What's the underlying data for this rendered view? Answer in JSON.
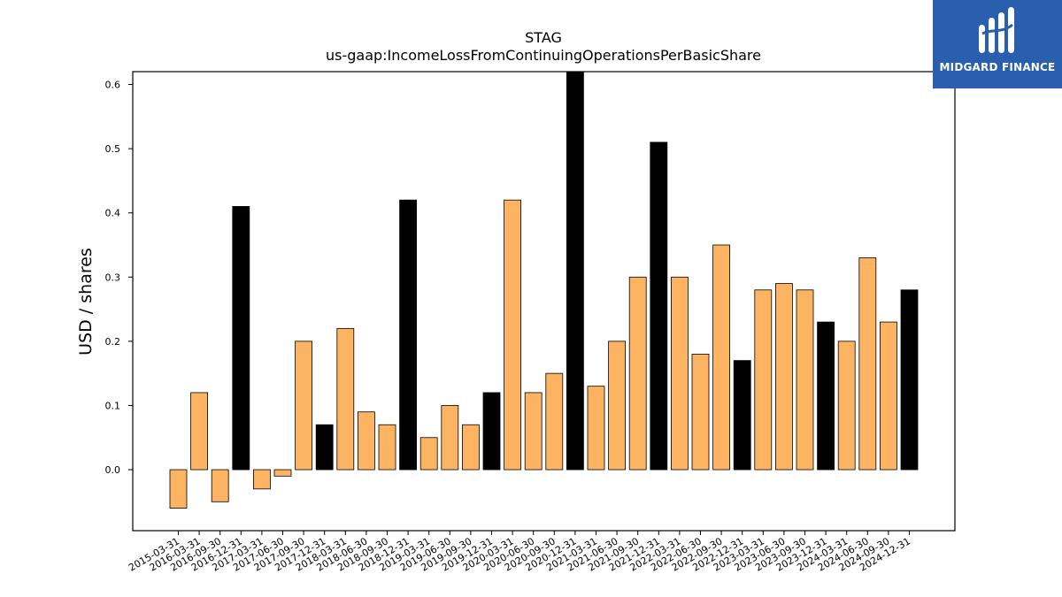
{
  "brand": {
    "name": "MIDGARD FINANCE",
    "bg_color": "#2a5fb0",
    "icon": "midgard-logo-icon"
  },
  "chart_data": {
    "type": "bar",
    "title": "STAG",
    "subtitle": "us-gaap:IncomeLossFromContinuingOperationsPerBasicShare",
    "xlabel": "",
    "ylabel": "USD / shares",
    "ylim": [
      -0.095,
      0.62
    ],
    "yticks": [
      0.0,
      0.1,
      0.2,
      0.3,
      0.4,
      0.5,
      0.6
    ],
    "grid": false,
    "colors": {
      "quarter": "#fdb462",
      "annual": "#000000",
      "edge": "#000000"
    },
    "categories": [
      "2015-03-31",
      "2016-03-31",
      "2016-09-30",
      "2016-12-31",
      "2017-03-31",
      "2017-06-30",
      "2017-09-30",
      "2017-12-31",
      "2018-03-31",
      "2018-06-30",
      "2018-09-30",
      "2018-12-31",
      "2019-03-31",
      "2019-06-30",
      "2019-09-30",
      "2019-12-31",
      "2020-03-31",
      "2020-06-30",
      "2020-09-30",
      "2020-12-31",
      "2021-03-31",
      "2021-06-30",
      "2021-09-30",
      "2021-12-31",
      "2022-03-31",
      "2022-06-30",
      "2022-09-30",
      "2022-12-31",
      "2023-03-31",
      "2023-06-30",
      "2023-09-30",
      "2023-12-31",
      "2024-03-31",
      "2024-06-30",
      "2024-09-30",
      "2024-12-31"
    ],
    "values": [
      -0.06,
      0.12,
      -0.05,
      0.41,
      -0.03,
      -0.01,
      0.2,
      0.07,
      0.22,
      0.09,
      0.07,
      0.42,
      0.05,
      0.1,
      0.07,
      0.12,
      0.42,
      0.12,
      0.15,
      0.65,
      0.13,
      0.2,
      0.3,
      0.51,
      0.3,
      0.18,
      0.35,
      0.17,
      0.28,
      0.29,
      0.28,
      0.23,
      0.2,
      0.33,
      0.23,
      0.28
    ],
    "annual": [
      false,
      false,
      false,
      true,
      false,
      false,
      false,
      true,
      false,
      false,
      false,
      true,
      false,
      false,
      false,
      true,
      false,
      false,
      false,
      true,
      false,
      false,
      false,
      true,
      false,
      false,
      false,
      true,
      false,
      false,
      false,
      true,
      false,
      false,
      false,
      true
    ]
  }
}
